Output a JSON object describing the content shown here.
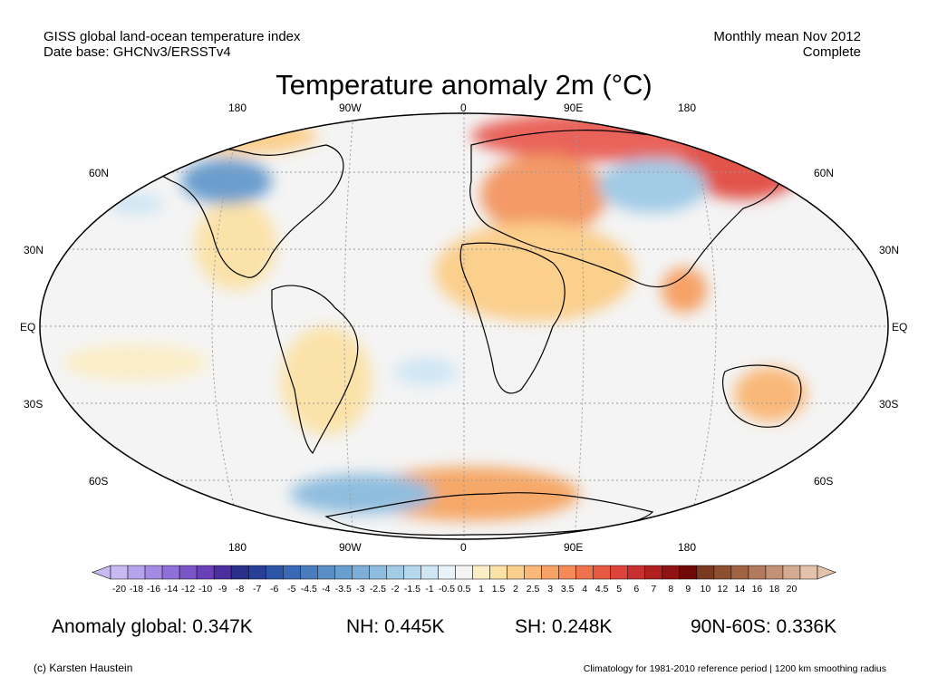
{
  "header": {
    "dataset_line1": "GISS global land-ocean temperature index",
    "dataset_line2": "Date base: GHCNv3/ERSSTv4",
    "period_line1": "Monthly mean Nov 2012",
    "period_line2": "Complete"
  },
  "title": "Temperature anomaly 2m (°C)",
  "map": {
    "projection": "Robinson",
    "lon_labels_top": [
      "180",
      "90W",
      "0",
      "90E",
      "180"
    ],
    "lon_labels_bottom": [
      "180",
      "90W",
      "0",
      "90E",
      "180"
    ],
    "lat_labels_left": [
      "60N",
      "30N",
      "EQ",
      "30S",
      "60S"
    ],
    "lat_labels_right": [
      "60N",
      "30N",
      "EQ",
      "30S",
      "60S"
    ]
  },
  "colorbar": {
    "tick_labels": [
      "-20",
      "-18",
      "-16",
      "-14",
      "-12",
      "-10",
      "-9",
      "-8",
      "-7",
      "-6",
      "-5",
      "-4.5",
      "-4",
      "-3.5",
      "-3",
      "-2.5",
      "-2",
      "-1.5",
      "-1",
      "-0.5",
      "0.5",
      "1",
      "1.5",
      "2",
      "2.5",
      "3",
      "3.5",
      "4",
      "4.5",
      "5",
      "6",
      "7",
      "8",
      "9",
      "10",
      "12",
      "14",
      "16",
      "18",
      "20"
    ],
    "colors": [
      "#c8b9f0",
      "#b7a2ec",
      "#a48ae4",
      "#8f6fd8",
      "#7a55c8",
      "#6a40b8",
      "#4b2fa0",
      "#2a2f8c",
      "#283f98",
      "#2d55a8",
      "#3a68b4",
      "#4a7dbe",
      "#5a8ec6",
      "#6a9ecf",
      "#7caed8",
      "#8fbddf",
      "#a2cbe6",
      "#b6d8ee",
      "#cfe6f4",
      "#e8f2f9",
      "#f4f4f4",
      "#fbeec6",
      "#fce1a6",
      "#fbcf8c",
      "#f9b878",
      "#f6a166",
      "#f38a58",
      "#ee724c",
      "#e65a42",
      "#dc433a",
      "#c83030",
      "#b02020",
      "#901212",
      "#700808",
      "#7a3a20",
      "#8e4e30",
      "#a06444",
      "#b27a5c",
      "#c29276",
      "#d4aa90",
      "#e4c2aa"
    ]
  },
  "stats": {
    "global": "Anomaly global: 0.347K",
    "nh": "NH: 0.445K",
    "sh": "SH: 0.248K",
    "arctic": "90N-60S: 0.336K"
  },
  "footer": {
    "credit": "(c) Karsten Haustein",
    "note": "Climatology for 1981-2010 reference period | 1200 km smoothing radius"
  }
}
